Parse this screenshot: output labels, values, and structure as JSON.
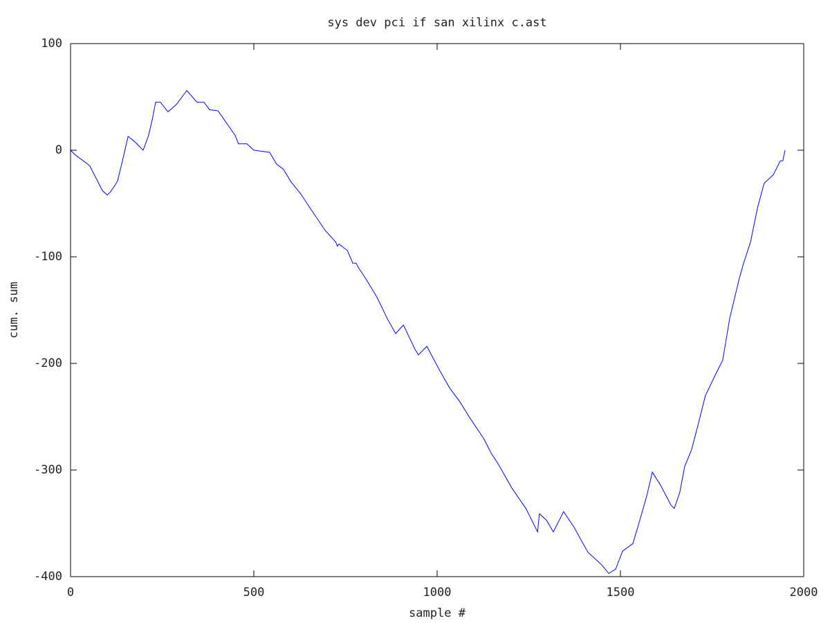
{
  "chart_data": {
    "type": "line",
    "title": "sys dev pci if san xilinx c.ast",
    "x_label": "sample #",
    "y_label": "cum. sum",
    "xlim": [
      0,
      2000
    ],
    "xticks": [
      0,
      500,
      1000,
      1500,
      2000
    ],
    "ylim": [
      -400,
      100
    ],
    "yticks": [
      100,
      0,
      -100,
      -200,
      -300,
      -400
    ],
    "grid": false,
    "series": [
      {
        "name": "cum. sum",
        "color": "#0000ff",
        "x": [
          0,
          15,
          43,
          53,
          87,
          100,
          109,
          119,
          128,
          138,
          147,
          157,
          175,
          198,
          213,
          223,
          232,
          245,
          266,
          289,
          317,
          345,
          364,
          379,
          402,
          449,
          458,
          481,
          500,
          543,
          562,
          581,
          600,
          628,
          651,
          694,
          723,
          728,
          732,
          755,
          770,
          779,
          785,
          808,
          836,
          864,
          887,
          908,
          940,
          949,
          972,
          1006,
          1034,
          1062,
          1091,
          1128,
          1147,
          1166,
          1204,
          1242,
          1274,
          1279,
          1298,
          1317,
          1345,
          1374,
          1411,
          1449,
          1468,
          1487,
          1506,
          1534,
          1553,
          1572,
          1587,
          1609,
          1638,
          1647,
          1662,
          1675,
          1694,
          1713,
          1732,
          1760,
          1779,
          1798,
          1823,
          1836,
          1855,
          1874,
          1892,
          1917,
          1936,
          1943,
          1949
        ],
        "values": [
          0,
          -5,
          -12,
          -15,
          -38,
          -42,
          -39,
          -34,
          -29,
          -15,
          -2,
          13,
          8,
          0,
          14,
          29,
          45,
          45,
          36,
          43,
          56,
          45,
          45,
          38,
          37,
          14,
          6,
          6,
          0,
          -2,
          -13,
          -18,
          -29,
          -41,
          -53,
          -75,
          -86,
          -90,
          -88,
          -94,
          -106,
          -106,
          -110,
          -122,
          -138,
          -158,
          -172,
          -164,
          -187,
          -192,
          -184,
          -206,
          -223,
          -236,
          -252,
          -271,
          -284,
          -294,
          -317,
          -336,
          -358,
          -341,
          -347,
          -358,
          -339,
          -354,
          -377,
          -389,
          -397,
          -393,
          -376,
          -369,
          -347,
          -324,
          -302,
          -314,
          -333,
          -336,
          -321,
          -297,
          -281,
          -256,
          -230,
          -210,
          -197,
          -158,
          -122,
          -106,
          -86,
          -54,
          -31,
          -23,
          -10,
          -10,
          0
        ]
      }
    ]
  }
}
